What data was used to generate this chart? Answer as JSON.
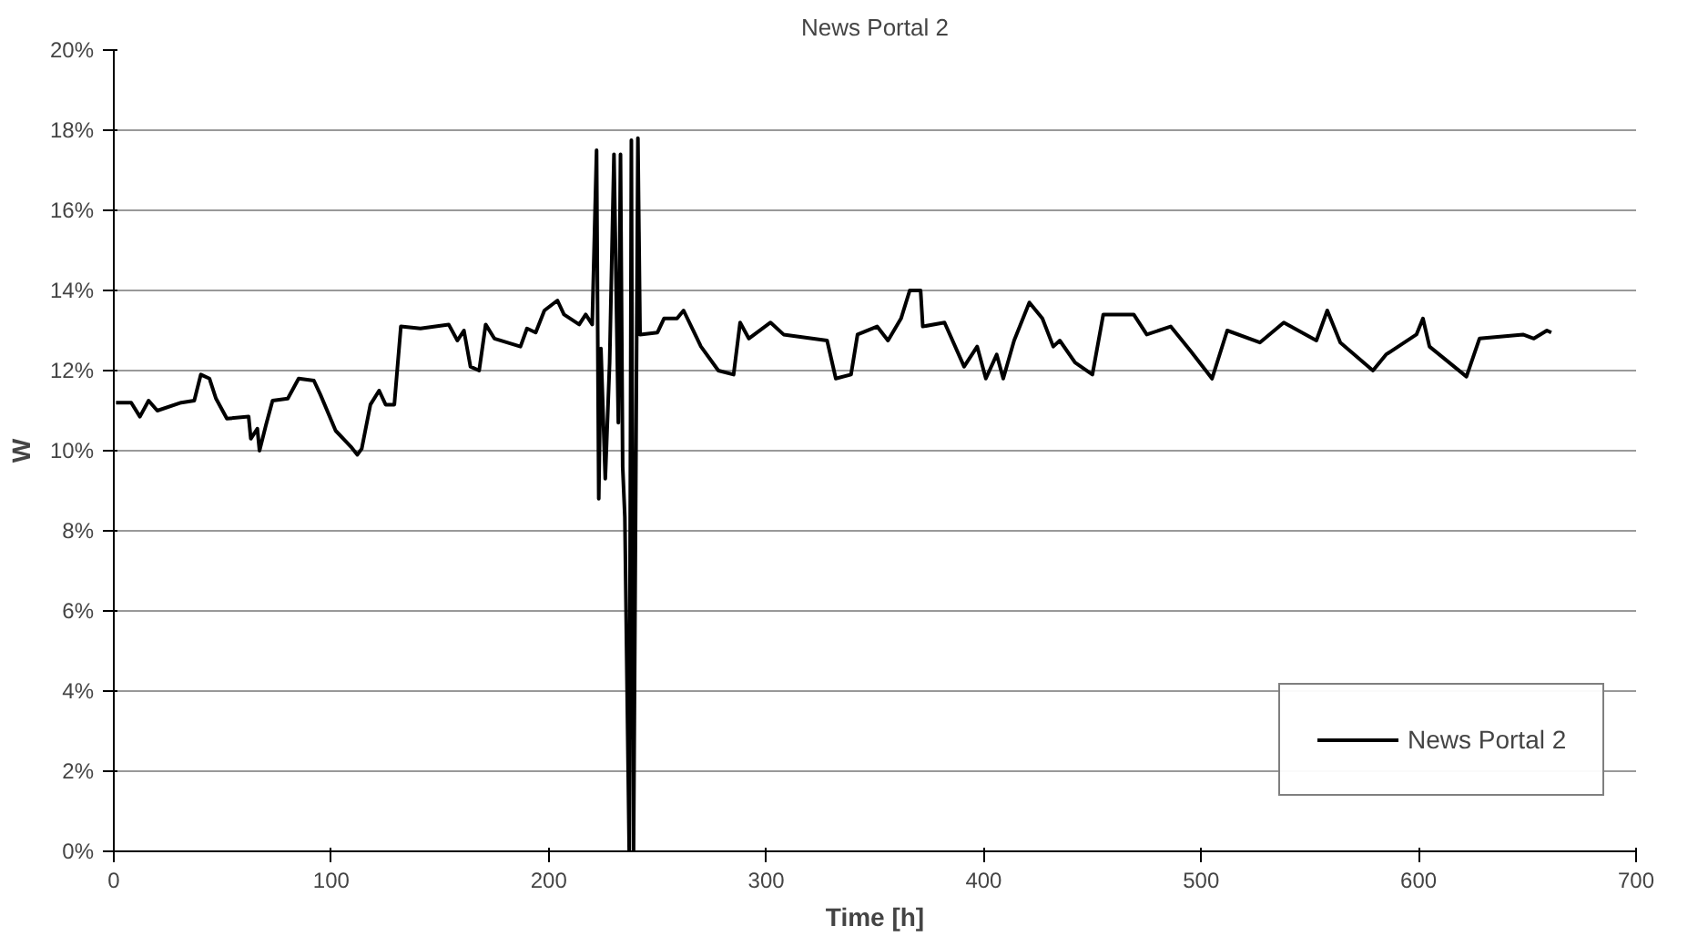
{
  "chart_data": {
    "type": "line",
    "title": "News Portal 2",
    "xlabel": "Time [h]",
    "ylabel": "W",
    "xlim": [
      0,
      700
    ],
    "xticks": [
      0,
      100,
      200,
      300,
      400,
      500,
      600,
      700
    ],
    "ylim": [
      0,
      0.2
    ],
    "yticks": [
      {
        "value": 0,
        "label": "0%"
      },
      {
        "value": 0.02,
        "label": "2%"
      },
      {
        "value": 0.04,
        "label": "4%"
      },
      {
        "value": 0.06,
        "label": "6%"
      },
      {
        "value": 0.08,
        "label": "8%"
      },
      {
        "value": 0.1,
        "label": "10%"
      },
      {
        "value": 0.12,
        "label": "12%"
      },
      {
        "value": 0.14,
        "label": "14%"
      },
      {
        "value": 0.16,
        "label": "16%"
      },
      {
        "value": 0.18,
        "label": "18%"
      },
      {
        "value": 0.2,
        "label": "20%"
      }
    ],
    "grid": "y",
    "legend": "bottom right",
    "marker": "none",
    "line_style": "solid",
    "series": [
      {
        "name": "News Portal 2",
        "color": "#000000",
        "x": [
          1,
          8,
          12,
          16,
          20,
          31,
          37,
          40,
          44,
          47,
          52,
          62,
          63,
          66,
          67,
          70,
          73,
          80,
          85,
          92,
          95,
          102,
          109,
          112,
          114,
          118,
          122,
          125,
          129,
          132,
          141,
          154,
          158,
          161,
          164,
          168,
          171,
          175,
          187,
          190,
          194,
          198,
          204,
          207,
          214,
          217,
          220,
          222,
          223,
          224,
          226,
          228,
          230,
          232,
          233,
          234,
          235,
          237,
          238,
          239,
          241,
          242,
          250,
          253,
          259,
          262,
          270,
          278,
          285,
          288,
          292,
          302,
          308,
          328,
          332,
          339,
          342,
          351,
          356,
          362,
          366,
          371,
          372,
          382,
          391,
          397,
          401,
          406,
          409,
          414,
          421,
          427,
          432,
          435,
          442,
          450,
          455,
          469,
          475,
          486,
          495,
          505,
          512,
          527,
          538,
          553,
          558,
          564,
          579,
          585,
          599,
          602,
          605,
          622,
          628,
          648,
          653,
          659,
          661
        ],
        "values": [
          0.112,
          0.112,
          0.1085,
          0.1125,
          0.11,
          0.112,
          0.1125,
          0.119,
          0.118,
          0.113,
          0.108,
          0.1085,
          0.103,
          0.1055,
          0.1,
          0.1065,
          0.1125,
          0.113,
          0.118,
          0.1175,
          0.114,
          0.105,
          0.101,
          0.099,
          0.1005,
          0.1115,
          0.115,
          0.1115,
          0.1115,
          0.131,
          0.1305,
          0.1315,
          0.1275,
          0.13,
          0.121,
          0.12,
          0.1315,
          0.128,
          0.126,
          0.1305,
          0.1295,
          0.135,
          0.1375,
          0.134,
          0.1315,
          0.134,
          0.1315,
          0.175,
          0.088,
          0.1255,
          0.093,
          0.122,
          0.174,
          0.107,
          0.174,
          0.096,
          0.0835,
          0.0,
          0.1775,
          0.0,
          0.178,
          0.129,
          0.1295,
          0.133,
          0.133,
          0.135,
          0.126,
          0.12,
          0.119,
          0.132,
          0.128,
          0.132,
          0.129,
          0.1275,
          0.118,
          0.119,
          0.129,
          0.131,
          0.1275,
          0.133,
          0.14,
          0.14,
          0.131,
          0.132,
          0.121,
          0.126,
          0.118,
          0.124,
          0.118,
          0.1275,
          0.137,
          0.133,
          0.126,
          0.1275,
          0.122,
          0.119,
          0.134,
          0.134,
          0.129,
          0.131,
          0.125,
          0.118,
          0.13,
          0.127,
          0.132,
          0.1275,
          0.135,
          0.127,
          0.12,
          0.124,
          0.129,
          0.133,
          0.126,
          0.1185,
          0.128,
          0.129,
          0.128,
          0.13,
          0.1295
        ]
      }
    ]
  }
}
